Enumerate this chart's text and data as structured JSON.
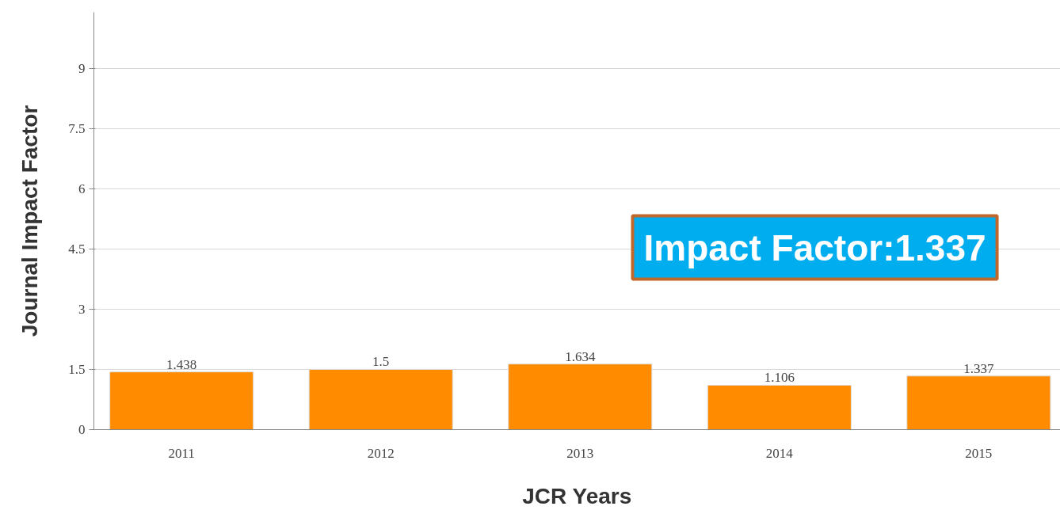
{
  "chart_data": {
    "type": "bar",
    "xlabel": "JCR Years",
    "ylabel": "Journal Impact Factor",
    "categories": [
      "2011",
      "2012",
      "2013",
      "2014",
      "2015"
    ],
    "values": [
      1.438,
      1.5,
      1.634,
      1.106,
      1.337
    ],
    "color": "#ff8c00",
    "ylim": [
      0,
      10.4
    ],
    "yticks": [
      0,
      1.5,
      3,
      4.5,
      6,
      7.5,
      9
    ],
    "grid": "y",
    "data_labels": true,
    "annotations": [
      "Impact Factor:1.337"
    ]
  }
}
